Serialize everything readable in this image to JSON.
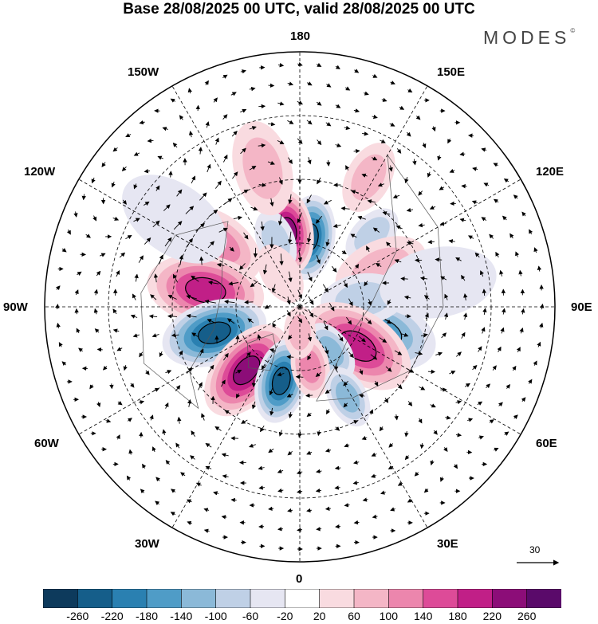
{
  "title": "Base 28/08/2025 00 UTC, valid 28/08/2025 00 UTC",
  "logo": "MODES",
  "logo_mark": "©",
  "longitude_labels": {
    "top": "180",
    "bottom": "0",
    "left": "90W",
    "right": "90E",
    "upper_left_150": "150W",
    "upper_right_150": "150E",
    "upper_left_120": "120W",
    "upper_right_120": "120E",
    "lower_left_60": "60W",
    "lower_right_60": "60E",
    "lower_left_30": "30W",
    "lower_right_30": "30E"
  },
  "vector_scale": {
    "value": "30"
  },
  "colorbar": {
    "ticks": [
      "-260",
      "-220",
      "-180",
      "-140",
      "-100",
      "-60",
      "-20",
      "20",
      "60",
      "100",
      "140",
      "180",
      "220",
      "260"
    ],
    "colors": [
      "#0d3a5c",
      "#155e8a",
      "#2a80b1",
      "#4f9cc7",
      "#8bb9d8",
      "#bfd0e6",
      "#e6e6f2",
      "#ffffff",
      "#f9dbe0",
      "#f4b6c6",
      "#ec86ad",
      "#dd4b98",
      "#c11f87",
      "#8c0d78",
      "#5a0a6a"
    ]
  },
  "anomalies": [
    {
      "lon": 172,
      "colat": 22,
      "value": -250,
      "spread": 7
    },
    {
      "lon": -171,
      "colat": 24,
      "value": 230,
      "spread": 7
    },
    {
      "lon": -160,
      "colat": 22,
      "value": -90,
      "spread": 5
    },
    {
      "lon": 135,
      "colat": 32,
      "value": -90,
      "spread": 5
    },
    {
      "lon": -128,
      "colat": 32,
      "value": 130,
      "spread": 8
    },
    {
      "lon": -100,
      "colat": 30,
      "value": 180,
      "spread": 10
    },
    {
      "lon": 115,
      "colat": 28,
      "value": 60,
      "spread": 8
    },
    {
      "lon": -73,
      "colat": 28,
      "value": -260,
      "spread": 9
    },
    {
      "lon": -40,
      "colat": 26,
      "value": 240,
      "spread": 9
    },
    {
      "lon": -14,
      "colat": 24,
      "value": -230,
      "spread": 7
    },
    {
      "lon": 72,
      "colat": 26,
      "value": -170,
      "spread": 10
    },
    {
      "lon": 97,
      "colat": 20,
      "value": -100,
      "spread": 7
    },
    {
      "lon": 56,
      "colat": 22,
      "value": 180,
      "spread": 10
    },
    {
      "lon": 35,
      "colat": 17,
      "value": -120,
      "spread": 5
    },
    {
      "lon": 10,
      "colat": 19,
      "value": 120,
      "spread": 5
    },
    {
      "lon": 28,
      "colat": 32,
      "value": -120,
      "spread": 5
    },
    {
      "lon": -165,
      "colat": 45,
      "value": 90,
      "spread": 8
    },
    {
      "lon": 152,
      "colat": 46,
      "value": 70,
      "spread": 6
    },
    {
      "lon": -125,
      "colat": 48,
      "value": -60,
      "spread": 10
    },
    {
      "lon": 100,
      "colat": 44,
      "value": -30,
      "spread": 10
    },
    {
      "lon": 0,
      "colat": 8,
      "value": 60,
      "spread": 4
    },
    {
      "lon": -150,
      "colat": 12,
      "value": 50,
      "spread": 5
    }
  ]
}
